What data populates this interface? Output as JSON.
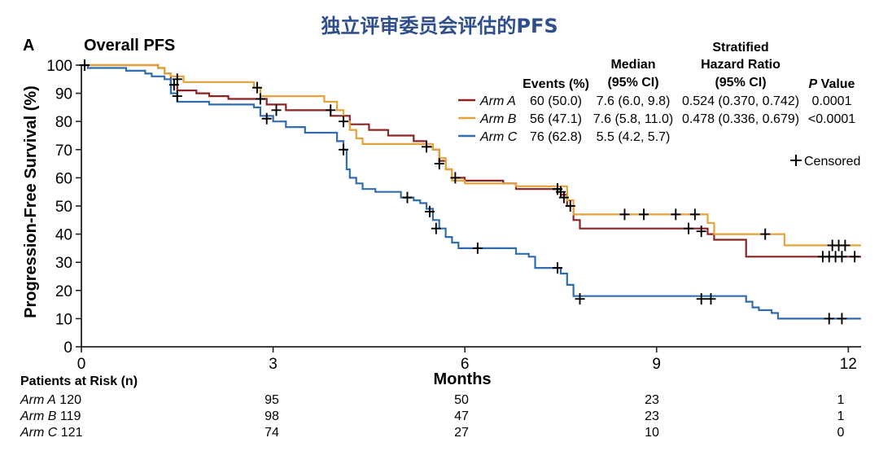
{
  "title": "独立评审委员会评估的PFS",
  "panel": {
    "letter": "A",
    "label": "Overall PFS"
  },
  "colors": {
    "arm_a": "#8b2323",
    "arm_b": "#e3a23a",
    "arm_c": "#2f6db0",
    "title": "#2f4e8c",
    "censor": "#000000"
  },
  "table": {
    "headers": {
      "events": "Events (%)",
      "median_l1": "Median",
      "median_l2": "(95% CI)",
      "hr_l1": "Stratified",
      "hr_l2": "Hazard Ratio",
      "hr_l3": "(95% CI)",
      "p_italic": "P",
      "p_rest": " Value"
    },
    "rows": [
      {
        "arm": "Arm A",
        "events": "60 (50.0)",
        "median": "7.6 (6.0, 9.8)",
        "hr": "0.524 (0.370, 0.742)",
        "p": "0.0001"
      },
      {
        "arm": "Arm B",
        "events": "56 (47.1)",
        "median": "7.6 (5.8, 11.0)",
        "hr": "0.478 (0.336, 0.679)",
        "p": "<0.0001"
      },
      {
        "arm": "Arm C",
        "events": "76 (62.8)",
        "median": "5.5 (4.2, 5.7)",
        "hr": "",
        "p": ""
      }
    ],
    "censored_label": "Censored"
  },
  "risk": {
    "title": "Patients at Risk (n)",
    "rows": [
      {
        "arm": "Arm A",
        "counts": [
          "120",
          "95",
          "50",
          "23",
          "1"
        ]
      },
      {
        "arm": "Arm B",
        "counts": [
          "119",
          "98",
          "47",
          "23",
          "1"
        ]
      },
      {
        "arm": "Arm C",
        "counts": [
          "121",
          "74",
          "27",
          "10",
          "0"
        ]
      }
    ]
  },
  "chart_data": {
    "type": "line",
    "subtype": "kaplan-meier step",
    "title": "Overall PFS",
    "xlabel": "Months",
    "ylabel": "Progression-Free Survival (%)",
    "xlim": [
      0,
      12.2
    ],
    "ylim": [
      0,
      100
    ],
    "xticks": [
      0,
      3,
      6,
      9,
      12
    ],
    "yticks": [
      0,
      10,
      20,
      30,
      40,
      50,
      60,
      70,
      80,
      90,
      100
    ],
    "legend_position": "top-right",
    "series": [
      {
        "name": "Arm A",
        "color": "#8b2323",
        "points": [
          [
            0,
            100
          ],
          [
            1.2,
            99
          ],
          [
            1.3,
            97
          ],
          [
            1.4,
            93
          ],
          [
            1.5,
            91
          ],
          [
            1.8,
            90
          ],
          [
            2.0,
            89
          ],
          [
            2.3,
            88
          ],
          [
            2.8,
            88
          ],
          [
            2.9,
            86
          ],
          [
            3.2,
            84
          ],
          [
            3.6,
            84
          ],
          [
            3.9,
            82
          ],
          [
            4.2,
            79
          ],
          [
            4.5,
            77
          ],
          [
            4.8,
            75
          ],
          [
            5.2,
            73
          ],
          [
            5.4,
            71
          ],
          [
            5.5,
            70
          ],
          [
            5.6,
            66
          ],
          [
            5.7,
            63
          ],
          [
            5.8,
            60
          ],
          [
            6.0,
            59
          ],
          [
            6.6,
            58
          ],
          [
            6.8,
            56
          ],
          [
            7.4,
            56
          ],
          [
            7.5,
            54
          ],
          [
            7.6,
            50
          ],
          [
            7.7,
            45
          ],
          [
            7.8,
            42
          ],
          [
            9.7,
            42
          ],
          [
            9.8,
            40
          ],
          [
            9.9,
            38
          ],
          [
            10.4,
            38
          ],
          [
            10.4,
            32
          ],
          [
            12.2,
            32
          ]
        ],
        "censored": [
          [
            0.05,
            100
          ],
          [
            1.45,
            93
          ],
          [
            2.8,
            88
          ],
          [
            3.05,
            84
          ],
          [
            5.6,
            65
          ],
          [
            5.85,
            60
          ],
          [
            7.45,
            56
          ],
          [
            7.5,
            55
          ],
          [
            7.55,
            53
          ],
          [
            9.5,
            42
          ],
          [
            9.7,
            41
          ],
          [
            11.6,
            32
          ],
          [
            11.7,
            32
          ],
          [
            11.8,
            32
          ],
          [
            11.9,
            32
          ],
          [
            12.1,
            32
          ]
        ]
      },
      {
        "name": "Arm B",
        "color": "#e3a23a",
        "points": [
          [
            0,
            100
          ],
          [
            1.2,
            99
          ],
          [
            1.3,
            97
          ],
          [
            1.4,
            96
          ],
          [
            1.6,
            94
          ],
          [
            2.4,
            94
          ],
          [
            2.7,
            92
          ],
          [
            2.8,
            89
          ],
          [
            3.4,
            89
          ],
          [
            3.8,
            87
          ],
          [
            4.0,
            84
          ],
          [
            4.1,
            80
          ],
          [
            4.2,
            77
          ],
          [
            4.3,
            74
          ],
          [
            4.4,
            72
          ],
          [
            5.0,
            72
          ],
          [
            5.3,
            72
          ],
          [
            5.5,
            70
          ],
          [
            5.6,
            67
          ],
          [
            5.7,
            63
          ],
          [
            5.8,
            59
          ],
          [
            6.0,
            58
          ],
          [
            6.8,
            57
          ],
          [
            7.5,
            57
          ],
          [
            7.6,
            52
          ],
          [
            7.7,
            47
          ],
          [
            9.7,
            47
          ],
          [
            9.8,
            44
          ],
          [
            9.9,
            40
          ],
          [
            10.9,
            40
          ],
          [
            11.0,
            36
          ],
          [
            12.2,
            36
          ]
        ],
        "censored": [
          [
            0.05,
            100
          ],
          [
            1.5,
            95
          ],
          [
            2.75,
            92
          ],
          [
            3.9,
            84
          ],
          [
            4.1,
            80
          ],
          [
            5.4,
            71
          ],
          [
            7.45,
            56
          ],
          [
            7.65,
            50
          ],
          [
            8.5,
            47
          ],
          [
            8.8,
            47
          ],
          [
            9.3,
            47
          ],
          [
            9.6,
            47
          ],
          [
            10.7,
            40
          ],
          [
            11.75,
            36
          ],
          [
            11.85,
            36
          ],
          [
            11.95,
            36
          ]
        ]
      },
      {
        "name": "Arm C",
        "color": "#2f6db0",
        "points": [
          [
            0,
            100
          ],
          [
            0.1,
            99
          ],
          [
            0.7,
            98
          ],
          [
            1.0,
            97
          ],
          [
            1.1,
            96
          ],
          [
            1.3,
            95
          ],
          [
            1.4,
            90
          ],
          [
            1.5,
            87
          ],
          [
            2.0,
            86
          ],
          [
            2.7,
            85
          ],
          [
            2.8,
            82
          ],
          [
            3.0,
            80
          ],
          [
            3.2,
            78
          ],
          [
            3.5,
            76
          ],
          [
            3.9,
            76
          ],
          [
            4.0,
            73
          ],
          [
            4.1,
            70
          ],
          [
            4.15,
            63
          ],
          [
            4.2,
            60
          ],
          [
            4.3,
            58
          ],
          [
            4.4,
            56
          ],
          [
            4.6,
            55
          ],
          [
            5.0,
            53
          ],
          [
            5.2,
            52
          ],
          [
            5.3,
            51
          ],
          [
            5.4,
            49
          ],
          [
            5.5,
            45
          ],
          [
            5.6,
            42
          ],
          [
            5.7,
            39
          ],
          [
            5.8,
            37
          ],
          [
            5.9,
            35
          ],
          [
            6.2,
            35
          ],
          [
            6.5,
            35
          ],
          [
            6.8,
            33
          ],
          [
            7.0,
            32
          ],
          [
            7.1,
            28
          ],
          [
            7.4,
            28
          ],
          [
            7.5,
            26
          ],
          [
            7.6,
            22
          ],
          [
            7.7,
            18
          ],
          [
            9.0,
            18
          ],
          [
            10.0,
            18
          ],
          [
            10.4,
            16
          ],
          [
            10.5,
            14
          ],
          [
            10.6,
            13
          ],
          [
            10.8,
            12
          ],
          [
            10.9,
            10
          ],
          [
            12.2,
            10
          ]
        ],
        "censored": [
          [
            1.5,
            89
          ],
          [
            2.9,
            81
          ],
          [
            4.1,
            70
          ],
          [
            5.1,
            53
          ],
          [
            5.45,
            48
          ],
          [
            5.55,
            42
          ],
          [
            6.2,
            35
          ],
          [
            7.45,
            28
          ],
          [
            7.8,
            17
          ],
          [
            9.7,
            17
          ],
          [
            9.85,
            17
          ],
          [
            11.7,
            10
          ],
          [
            11.9,
            10
          ]
        ]
      }
    ]
  }
}
